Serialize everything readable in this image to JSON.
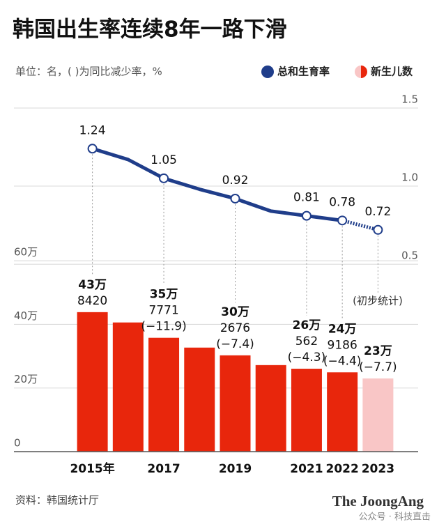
{
  "chart_data": {
    "type": "bar",
    "title": "韩国出生率连续8年一路下滑",
    "subtitle": "单位：名，( )为同比减少率，%",
    "categories": [
      "2015年",
      null,
      "2017",
      null,
      "2019",
      null,
      "2021",
      "2022",
      "2023"
    ],
    "series": [
      {
        "name": "新生儿数",
        "type": "bar",
        "colors": [
          "#e8260c",
          "#e8260c",
          "#e8260c",
          "#e8260c",
          "#e8260c",
          "#e8260c",
          "#e8260c",
          "#e8260c",
          "#f9c6c6"
        ],
        "values": [
          43.842,
          40.6,
          35.7771,
          32.7,
          30.2676,
          27.2,
          26.0562,
          24.9186,
          23.0
        ],
        "value_labels": [
          [
            "43万",
            "8420"
          ],
          null,
          [
            "35万",
            "7771",
            "(−11.9)"
          ],
          null,
          [
            "30万",
            "2676",
            "(−7.4)"
          ],
          null,
          [
            "26万",
            "562",
            "(−4.3)"
          ],
          [
            "24万",
            "9186",
            "(−4.4)"
          ],
          [
            "23万",
            "(−7.7)"
          ]
        ]
      },
      {
        "name": "总和生育率",
        "type": "line",
        "axis": "y2",
        "color": "#1f3d8a",
        "values": [
          1.24,
          1.17,
          1.05,
          0.98,
          0.92,
          0.84,
          0.81,
          0.78,
          0.72
        ],
        "value_labels": [
          "1.24",
          null,
          "1.05",
          null,
          "0.92",
          null,
          "0.81",
          "0.78",
          "0.72"
        ]
      }
    ],
    "dashed_last_segment": true,
    "ylim": [
      0,
      108
    ],
    "yticks": [
      0,
      {
        "value": 20,
        "label": "20万"
      },
      {
        "value": 40,
        "label": "40万"
      },
      {
        "value": 60,
        "label": "60万"
      }
    ],
    "y2lim": [
      -0.7,
      1.5
    ],
    "y2ticks": [
      0.5,
      {
        "value": 1.0,
        "label": "1.0"
      },
      1.5
    ],
    "grid": true,
    "annotation": "(初步统计)",
    "source": "资料：韩国统计厅",
    "brand": "The JoongAng",
    "watermark": "公众号 · 科技直击"
  }
}
